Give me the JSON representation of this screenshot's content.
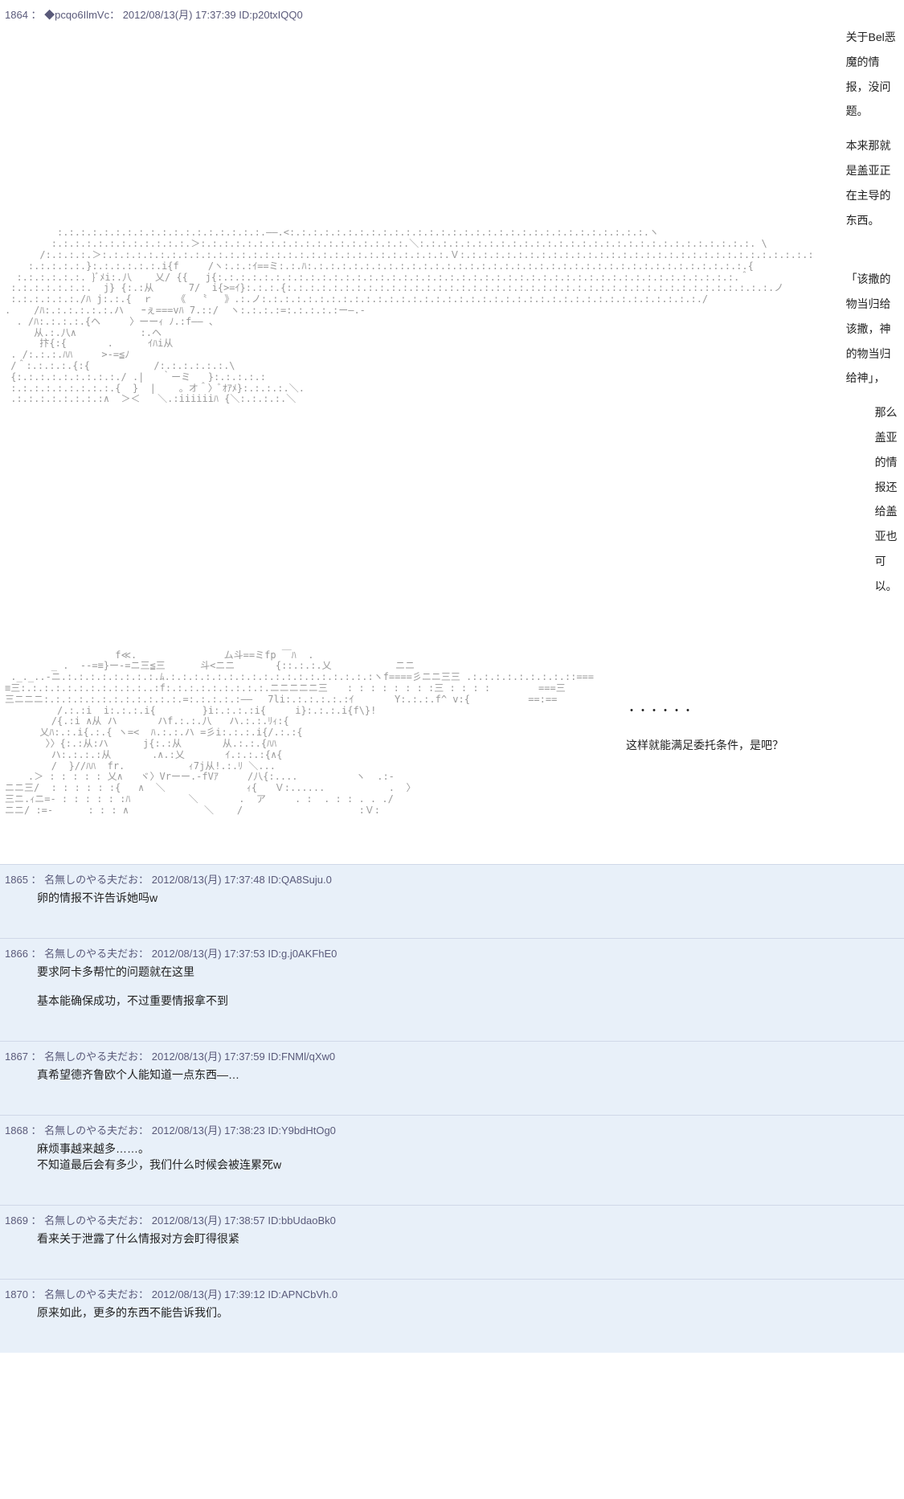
{
  "colors": {
    "reply_bg": "#e8f0f9",
    "main_bg": "#ffffff",
    "header_text": "#5a5a7a",
    "body_text": "#222222",
    "aa_text": "#999999"
  },
  "posts": [
    {
      "number": "1864",
      "name": "◆pcqo6IlmVc",
      "datetime": "2012/08/13(月) 17:37:39",
      "id": "ID:p20txIQQ0",
      "type": "main",
      "dialogue1_line1": "关于Bel恶魔的情报，没问题。",
      "dialogue1_line2": "本来那就是盖亚正在主导的东西。",
      "dialogue1_line3": "「该撒的物当归给该撒，神的物当归给神」，",
      "dialogue1_line4": "那么盖亚的情报还给盖亚也可以。",
      "dialogue2_line1": "・・・・・・",
      "dialogue2_line2": "这样就能满足委托条件，是吧？",
      "ascii_art_1": "         :.:.:.:.:.:.:.:.:.:.:.:.:.:.:.:.:.:.――.<:.:.:.:.:.:.:.:.:.:.:.:.:.:.:.:.:.:.:.:.:.:.:.:.:.:.:.:.:.:.:.ヽ\n        :.:.:.:.:.:.:.:.:.:.:.:.＞:.:.:.:.:.:.:.:.:.:.:.:.:.:.:.:.:.:.＼:.:.:.:.:.:.:.:.:.:.:.:.:.:.:.:.:.:.:.:.:.:.:.:.:.:.:.:.:. \\\n      /:.:.:.:.＞:.:.:.:.:.:.:.:.:.:.:.:.:.:.:.:.:.:.:.:.:.:.:.:.:.:.:.:.:.:.Ｖ:.:.:.:.:.:.:.:.:.:.:.:.:.:.:.:.:.:.:.:.:.:.:.:.:.:.:.:.:.:.:\n    :.:.:.:.:.}:.:.:.:.:.:.i{f     /ヽ:.:.:ｲ==ミ:.:.ﾊ:.:.:.:.:.:.:.:.:.:.:.:.:.:.:.:.:.:.:.:.:.:.:.:.:.:.:.:.:.:.:.:.:.:.:.:.:.:.{\n  :.:.:.:.:.:. }ﾞﾒi:.八    乂/ {{   j{:.:.:.:.:.:.:.:.:.:.:.:.:.:.:.:.:.:.:.:.:.:.:.:.:.:.:.:.:.:.:.:.:.:.:.:.:.:.:.:.:.:.:.:.:.＾\n :.:.:.:.:.:.:.  j} {:.:从      7/  i{>=ｲ}:.:.:.{:.:.:.:.:.:.:.:.:.:.:.:.:.:.:.:.:.:.:.:.:.:.:.:.:.:.:.:.:.:.:.:.:.:.:.:.:.:.:.:.:.:.ノ\n :.:.:.:.:.:./ﾊ j:.:.{  ｒ    《  〝   》.:.ノ:.:.:.:.:.:.:.:.:.:.:.:.:.:.:.:.:.:.:.:.:.:.:.:.:.:.:.:.:.:.:.:.:.:.:.:.:.:./\n.    /ﾊ:.:.:.:.:.:.ハ   ｰぇ===vﾊ 7.::/  ヽ:.:.:.:=:.:.:.:.:ー―.-\n  . /ﾊ:.:.:.:.{ヘ     〉ーーｨ ﾉ.:f―― 、\n     从.:.八∧           :.ヘ\n      抃{:{       .      ｲﾊi从\n . /:.:.:.ﾊﾊ     >-=≦ﾉ\n /＾:.:.:.:.{:{           /:.:.:.:.:.:.\\\n {:.:.:.:.:.:.:.:.:./ .|   ｀ーミ   }:.:.:.:.:\n :.:.:.:.:.:.:.:.:.{  }  |    。オ＾〉ﾞｵｱﾒ}:.:.:.:.＼.\n .:.:.:.:.:.:.:.:∧  ＞＜   ＼.:iiiiiiﾊ {＼:.:.:.:.＼",
      "ascii_art_2": "                   f≪.               ム斗==ミfp ￣ﾊ  .\n        _ .  -‐=≡}ー-=ニ三≦三      斗<ニニ       {::.:.:.乂           ニニ\n ._._..-ニ.:.:.:.:.:.:.:.:.ﾑ.:.:.:.:.:.:.:.:.:.:.:.:.:.:.:.:.:.:ヽf====彡ニニ三三 .:.:.:.:.:.:.:.:.::===\n≡三:.:.:.:.:.:.:.:.:.:.:..:f:.:.:.:.:.:.:.:.:.ニニニニニ三　　: : : : : : : :三 : : : :　　　　　===三\n三ニニニ:.:.:.:.:.:.:.:.:.:.:.:.=:.:.:.:.:―― 　7li:.:.:.:.:.:ｲ       Y:.:.:.f^ v:{          ==:==\n         /.:.:i  i:.:.:.i{        }i:.:.:.:i{     i}:.:.:.i{f\\}!\n        /{.:i ∧从 ハ       ハf.:.:.八   ハ.:.:.ﾘｨ:{\n      乂ﾊ:.:.i{.:.{ ヽ=<  ﾊ.:.:.ハ =彡i:.:.:.i{/.:.:{\n       〉〉{:.:从:ハ      j{:.:从       从.:.:.{ﾊﾊ\n        ハ:.:.:.:从       .∧.:乂       ｲ.:.:.:{∧{\n        /  }//ﾊﾊ  fr.           ｨ7j从!.:.ﾘ ＼...\n    .＞ : : : : : 乂∧   ヾ〉Vrーー.-fVｱ     /八{:....          ヽ  .:-\nニニ三/  : : : : : :{   ∧  ＼              ｨ{   Ｖ:......           .  〉\n三ニ.ｨニ=- : : : : : :ﾊ          ＼       .  ア     . :  . : : . . ./\nニニ/ :=-      : : : ∧             ＼    /                    :Ｖ:"
    },
    {
      "number": "1865",
      "name": "名無しのやる夫だお",
      "datetime": "2012/08/13(月) 17:37:48",
      "id": "ID:QA8Suju.0",
      "type": "reply",
      "body_lines": [
        "卵的情报不许告诉她吗w"
      ]
    },
    {
      "number": "1866",
      "name": "名無しのやる夫だお",
      "datetime": "2012/08/13(月) 17:37:53",
      "id": "ID:g.j0AKFhE0",
      "type": "reply",
      "body_lines": [
        "要求阿卡多帮忙的问题就在这里",
        "",
        "基本能确保成功，不过重要情报拿不到"
      ]
    },
    {
      "number": "1867",
      "name": "名無しのやる夫だお",
      "datetime": "2012/08/13(月) 17:37:59",
      "id": "ID:FNMl/qXw0",
      "type": "reply",
      "body_lines": [
        "真希望德齐鲁欧个人能知道一点东西―…"
      ]
    },
    {
      "number": "1868",
      "name": "名無しのやる夫だお",
      "datetime": "2012/08/13(月) 17:38:23",
      "id": "ID:Y9bdHtOg0",
      "type": "reply",
      "body_lines": [
        "麻烦事越来越多……。",
        "不知道最后会有多少，我们什么时候会被连累死w"
      ]
    },
    {
      "number": "1869",
      "name": "名無しのやる夫だお",
      "datetime": "2012/08/13(月) 17:38:57",
      "id": "ID:bbUdaoBk0",
      "type": "reply",
      "body_lines": [
        "看来关于泄露了什么情报对方会盯得很紧"
      ]
    },
    {
      "number": "1870",
      "name": "名無しのやる夫だお",
      "datetime": "2012/08/13(月) 17:39:12",
      "id": "ID:APNCbVh.0",
      "type": "reply",
      "body_lines": [
        "原来如此，更多的东西不能告诉我们。"
      ]
    }
  ]
}
